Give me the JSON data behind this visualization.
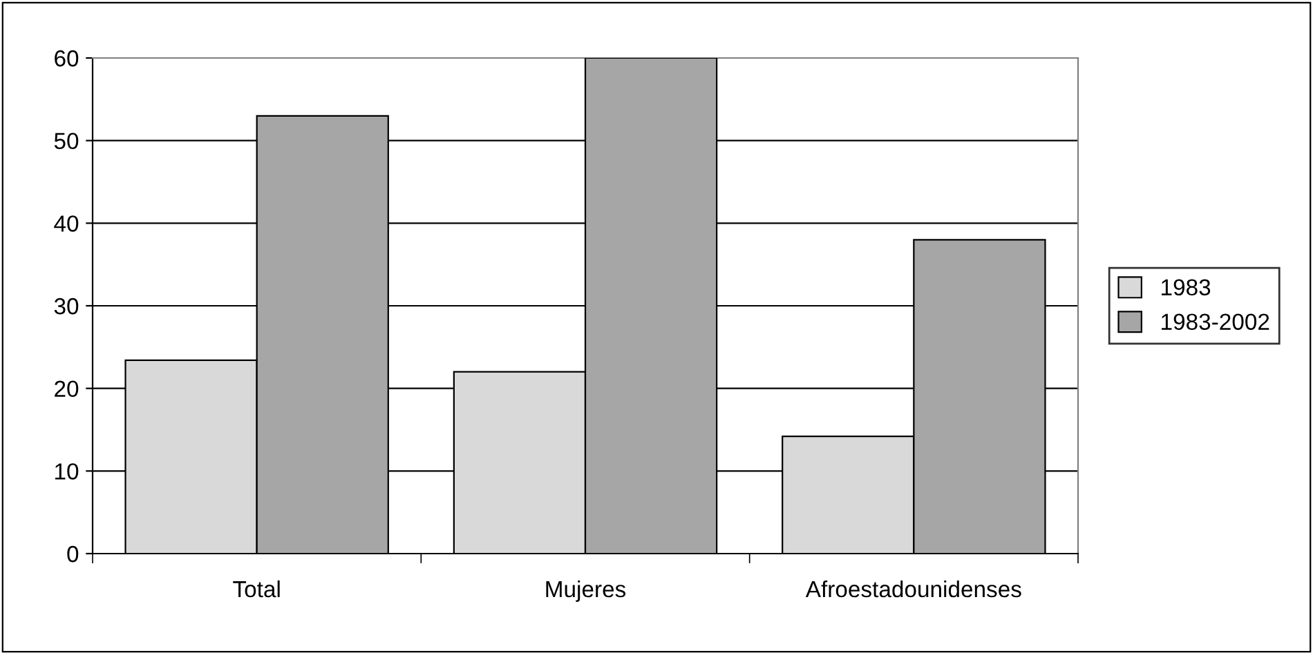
{
  "chart_data": {
    "type": "bar",
    "categories": [
      "Total",
      "Mujeres",
      "Afroestadounidenses"
    ],
    "series": [
      {
        "name": "1983",
        "color": "#d9d9d9",
        "values": [
          23.4,
          22,
          14.2
        ]
      },
      {
        "name": "1983-2002",
        "color": "#a6a6a6",
        "values": [
          53,
          60,
          38
        ]
      }
    ],
    "ylim": [
      0,
      60
    ],
    "yticks": [
      0,
      10,
      20,
      30,
      40,
      50,
      60
    ],
    "grid": "y",
    "legend": "right"
  }
}
